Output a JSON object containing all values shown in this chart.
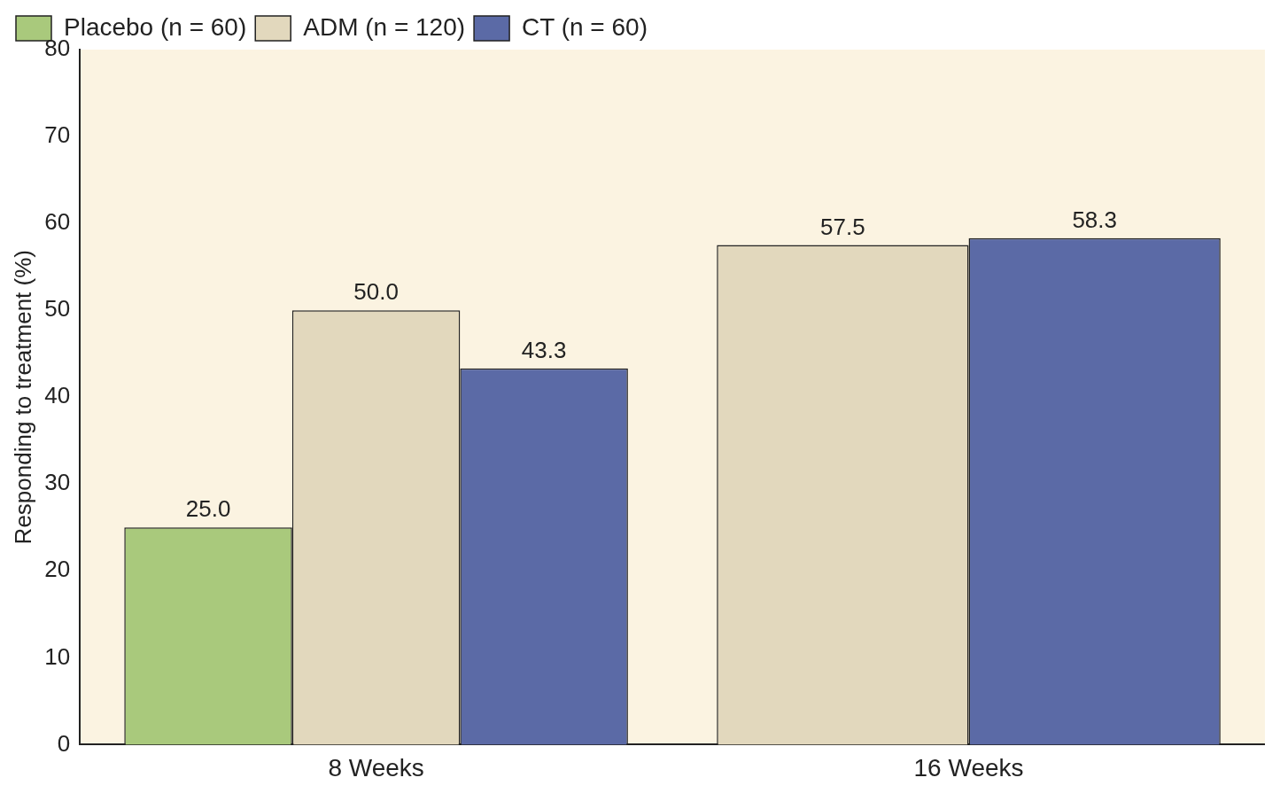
{
  "chart_data": {
    "type": "bar",
    "ylabel": "Responding to treatment (%)",
    "categories": [
      "8 Weeks",
      "16 Weeks"
    ],
    "series": [
      {
        "name": "Placebo (n = 60)",
        "color": "#a9c97c",
        "values": [
          25.0,
          null
        ],
        "value_labels": [
          "25.0",
          null
        ]
      },
      {
        "name": "ADM (n = 120)",
        "color": "#e2d8bd",
        "values": [
          50.0,
          57.5
        ],
        "value_labels": [
          "50.0",
          "57.5"
        ]
      },
      {
        "name": "CT (n = 60)",
        "color": "#5b6aa6",
        "values": [
          43.3,
          58.3
        ],
        "value_labels": [
          "43.3",
          "58.3"
        ]
      }
    ],
    "ylim": [
      0,
      80
    ],
    "yticks": [
      0,
      10,
      20,
      30,
      40,
      50,
      60,
      70,
      80
    ],
    "grid": false,
    "legend": "top left"
  }
}
